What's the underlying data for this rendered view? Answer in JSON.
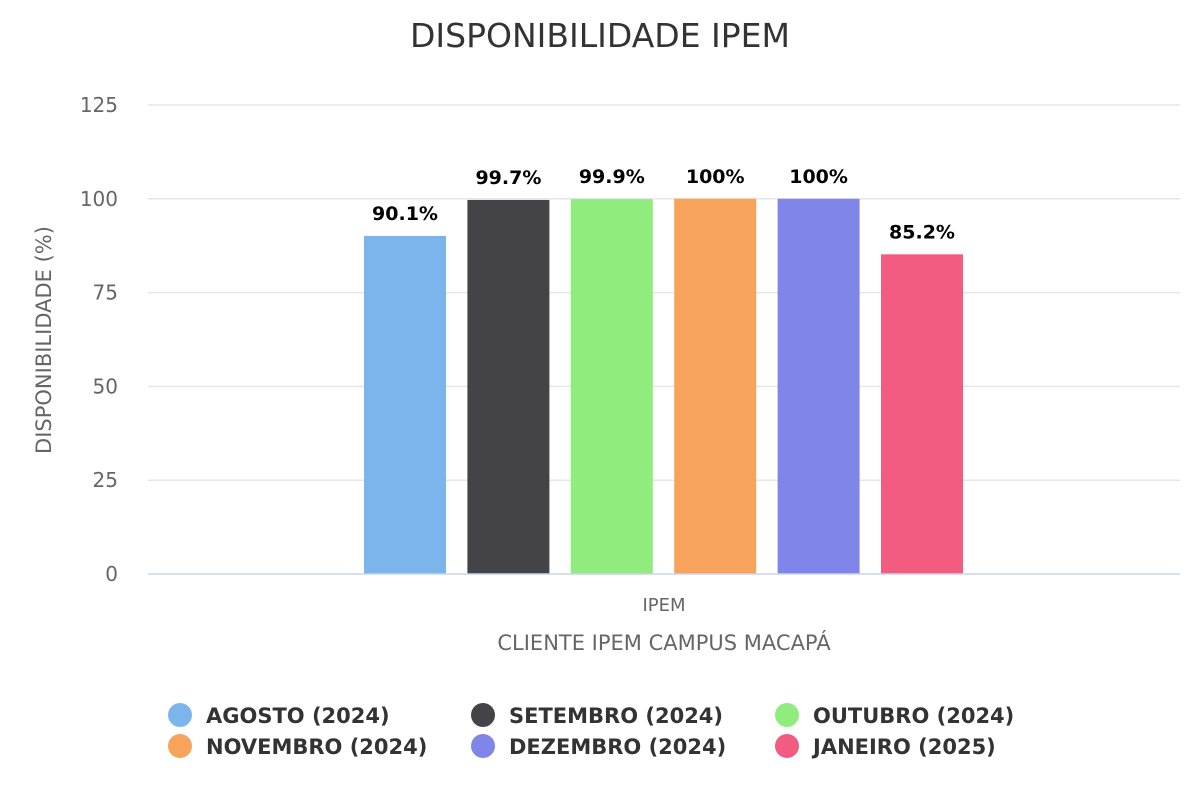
{
  "chart_data": {
    "type": "bar",
    "title": "DISPONIBILIDADE IPEM",
    "ylabel": "DISPONIBILIDADE (%)",
    "xlabel": "CLIENTE IPEM CAMPUS MACAPÁ",
    "categories": [
      "IPEM"
    ],
    "ylim": [
      0,
      125
    ],
    "yticks": [
      0,
      25,
      50,
      75,
      100,
      125
    ],
    "grid": true,
    "legend_position": "bottom",
    "series": [
      {
        "name": "AGOSTO (2024)",
        "values": [
          90.1
        ],
        "label": "90.1%",
        "color": "#7cb5ec"
      },
      {
        "name": "SETEMBRO (2024)",
        "values": [
          99.7
        ],
        "label": "99.7%",
        "color": "#434348"
      },
      {
        "name": "OUTUBRO (2024)",
        "values": [
          99.9
        ],
        "label": "99.9%",
        "color": "#90ed7d"
      },
      {
        "name": "NOVEMBRO (2024)",
        "values": [
          100
        ],
        "label": "100%",
        "color": "#f7a35c"
      },
      {
        "name": "DEZEMBRO (2024)",
        "values": [
          100
        ],
        "label": "100%",
        "color": "#8085e9"
      },
      {
        "name": "JANEIRO (2025)",
        "values": [
          85.2
        ],
        "label": "85.2%",
        "color": "#f15c80"
      }
    ]
  }
}
